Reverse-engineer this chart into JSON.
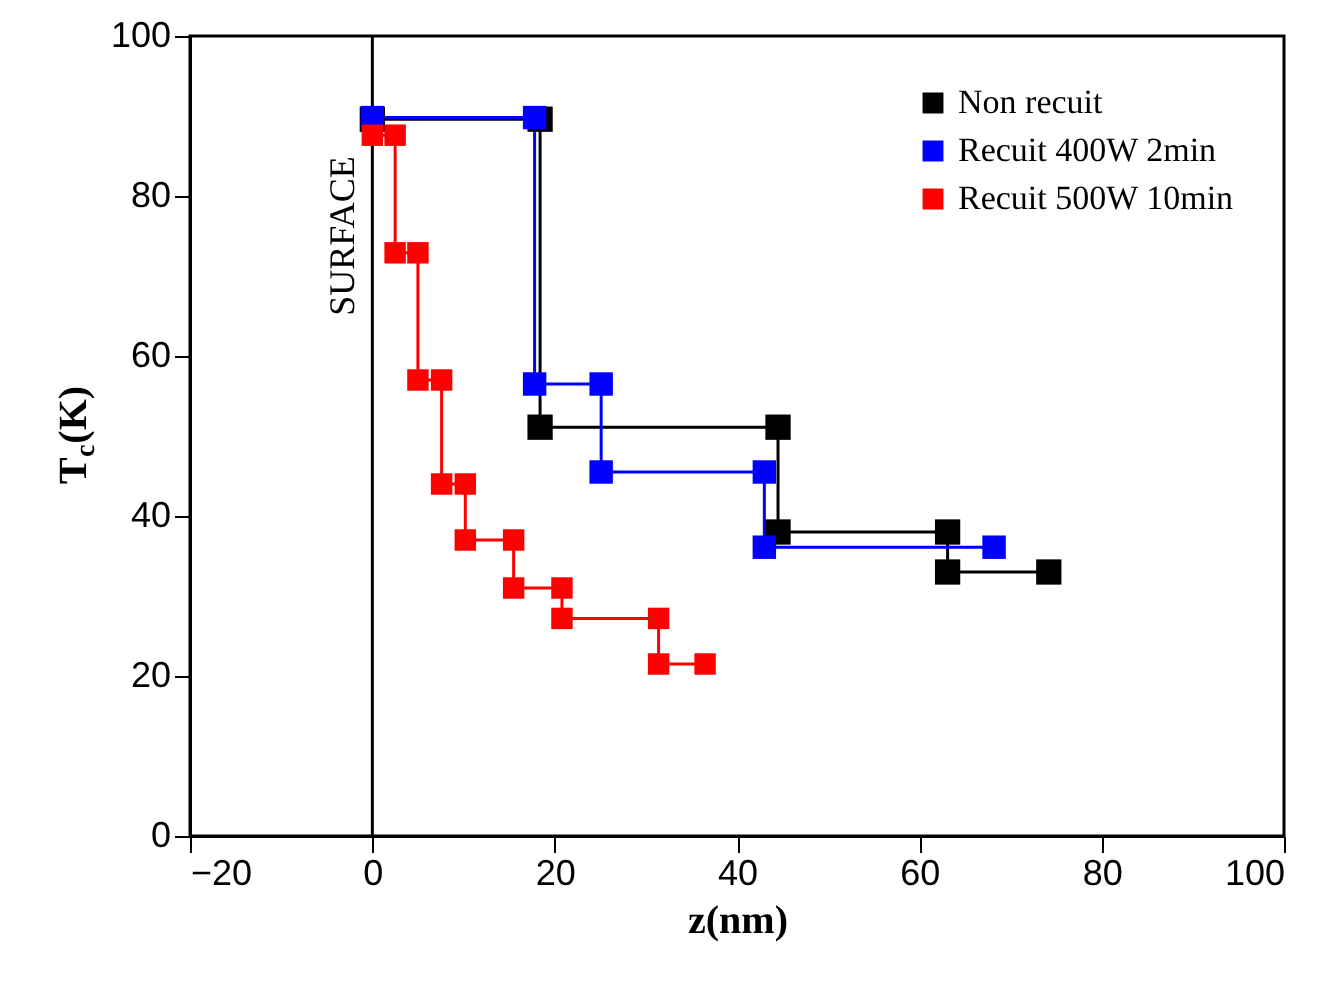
{
  "chart_data": {
    "type": "line",
    "xlabel": "z(nm)",
    "ylabel": "T$_{c}$(K)",
    "xlim": [
      -20,
      100
    ],
    "xticks": [
      -20,
      0,
      20,
      40,
      60,
      80,
      100
    ],
    "ylim": [
      0,
      100
    ],
    "yticks": [
      0,
      20,
      40,
      60,
      80,
      100
    ],
    "grid": false,
    "legend": "top right",
    "marker": "square",
    "line_style": "solid",
    "ref_lines": [
      {
        "axis": "x",
        "value": 0,
        "label": "SURFACE",
        "color": "#000000"
      }
    ],
    "series": [
      {
        "name": "Non recuit",
        "color": "#000000",
        "x": [
          0,
          18.4,
          18.4,
          44.5,
          44.5,
          63.1,
          63.1,
          74.2
        ],
        "values": [
          89.6,
          89.6,
          51.1,
          51.1,
          38,
          38,
          33,
          33
        ]
      },
      {
        "name": "Recuit 400W 2min",
        "color": "#0000ff",
        "x": [
          0,
          17.8,
          17.8,
          25.1,
          25.1,
          43,
          43,
          68.2
        ],
        "values": [
          89.8,
          89.8,
          56.5,
          56.5,
          45.5,
          45.5,
          36.1,
          36.1
        ]
      },
      {
        "name": "Recuit 500W 10min",
        "color": "#ff0000",
        "x": [
          0,
          2.5,
          2.5,
          5,
          5,
          7.6,
          7.6,
          10.2,
          10.2,
          15.5,
          15.5,
          20.8,
          20.8,
          31.4,
          31.4,
          36.5
        ],
        "values": [
          87.6,
          87.6,
          72.9,
          72.9,
          57,
          57,
          44,
          44,
          37,
          37,
          31,
          31,
          27.2,
          27.2,
          21.5,
          21.5
        ]
      }
    ]
  }
}
